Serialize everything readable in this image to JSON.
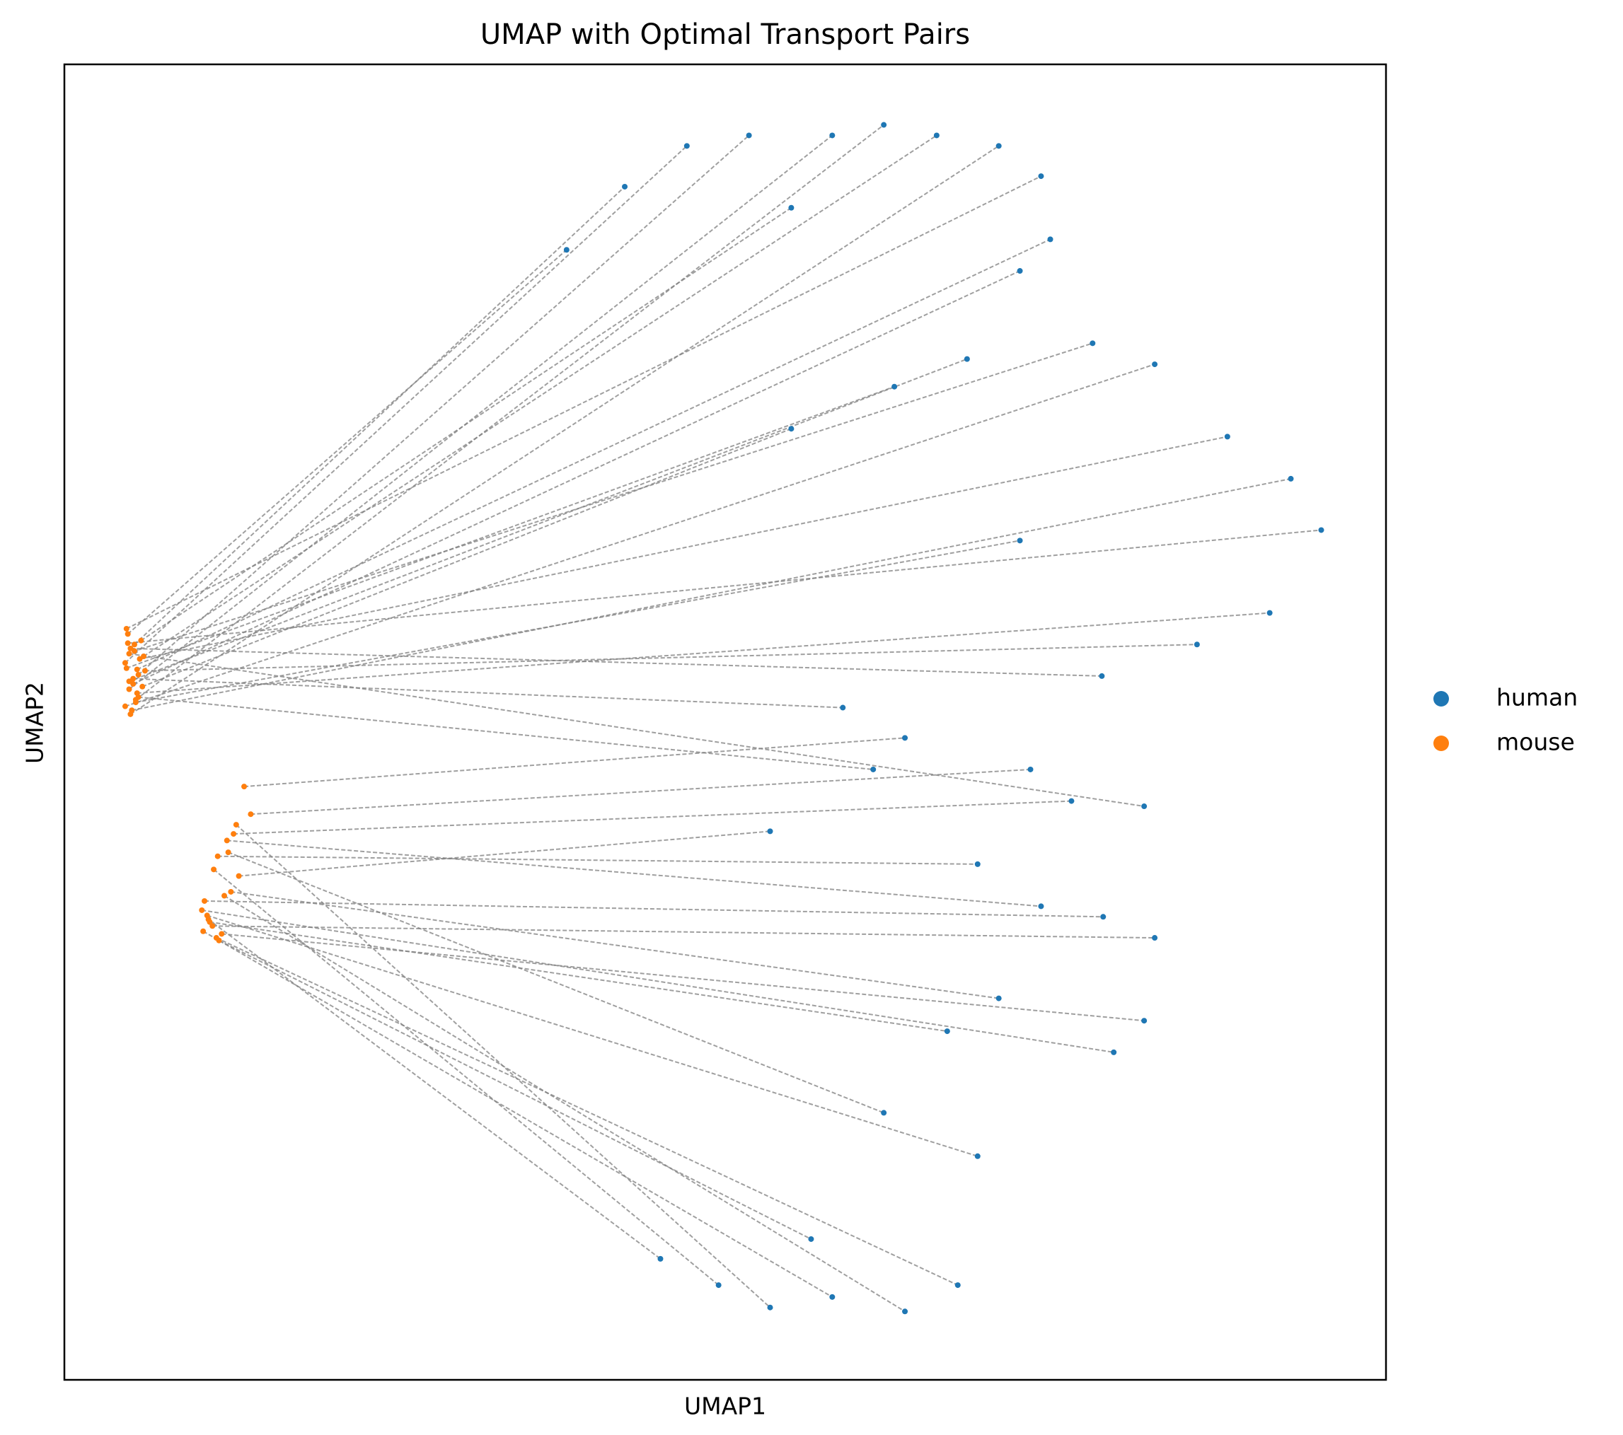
{
  "chart_data": {
    "type": "scatter",
    "title": "UMAP with Optimal Transport Pairs",
    "xlabel": "UMAP1",
    "ylabel": "UMAP2",
    "xlim": [
      0,
      100
    ],
    "ylim": [
      0,
      100
    ],
    "legend": "right",
    "pair_lines": true,
    "pair_color": "#808080",
    "series": [
      {
        "name": "human",
        "color": "#1f77b4",
        "x": [
          38.0,
          42.4,
          47.1,
          51.8,
          58.1,
          62.0,
          66.0,
          70.7,
          73.9,
          74.6,
          72.3,
          55.0,
          68.3,
          77.8,
          82.5,
          88.0,
          92.8,
          95.1,
          91.2,
          85.7,
          78.5,
          72.3,
          62.8,
          55.0,
          58.9,
          63.6,
          61.2,
          73.1,
          81.7,
          76.2,
          53.4,
          69.1,
          73.9,
          78.6,
          82.5,
          81.7,
          79.4,
          70.7,
          66.8,
          69.1,
          67.6,
          63.6,
          58.1,
          53.4,
          49.5,
          45.1,
          62.0,
          56.5
        ],
        "y": [
          85.9,
          90.7,
          93.8,
          94.6,
          94.6,
          95.4,
          94.6,
          93.8,
          91.5,
          86.7,
          84.3,
          89.1,
          77.6,
          78.8,
          77.2,
          71.7,
          68.5,
          64.6,
          58.3,
          55.9,
          53.5,
          63.8,
          75.5,
          72.3,
          51.1,
          48.8,
          46.4,
          46.4,
          43.6,
          44.0,
          41.7,
          39.2,
          36.0,
          35.2,
          33.6,
          27.3,
          24.9,
          29.0,
          26.5,
          17.0,
          7.2,
          5.2,
          6.3,
          5.5,
          7.2,
          9.2,
          20.3,
          10.7
        ]
      },
      {
        "name": "mouse",
        "color": "#ff7f0e",
        "x": [
          4.8,
          5.3,
          4.6,
          5.6,
          4.9,
          5.4,
          6.0,
          5.0,
          4.7,
          5.5,
          5.2,
          5.8,
          4.9,
          5.3,
          4.6,
          5.7,
          5.1,
          4.8,
          5.5,
          6.1,
          5.0,
          5.4,
          4.7,
          5.9,
          5.2,
          13.6,
          5.6,
          14.1,
          4.9,
          12.8,
          13.2,
          11.6,
          12.3,
          10.6,
          11.2,
          11.9,
          10.4,
          12.6,
          11.0,
          10.8,
          11.5,
          12.1,
          10.5,
          13.0,
          11.3,
          10.9,
          12.4,
          11.7
        ],
        "y": [
          56.7,
          55.9,
          54.5,
          53.6,
          52.5,
          51.7,
          55.0,
          50.6,
          57.1,
          54.0,
          52.9,
          56.2,
          53.1,
          55.4,
          51.2,
          54.8,
          50.9,
          56.0,
          52.2,
          53.9,
          55.6,
          51.5,
          54.1,
          52.7,
          53.3,
          45.1,
          51.9,
          43.0,
          55.2,
          41.5,
          38.3,
          39.8,
          41.0,
          36.4,
          34.5,
          33.9,
          35.7,
          37.1,
          34.8,
          35.3,
          33.6,
          36.8,
          34.1,
          42.2,
          38.8,
          35.0,
          40.1,
          33.4
        ]
      }
    ]
  }
}
